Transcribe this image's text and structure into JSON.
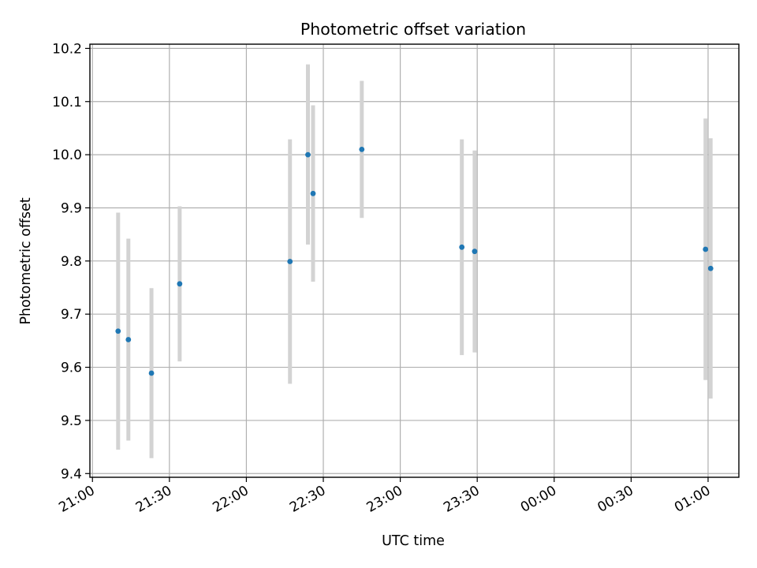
{
  "chart_data": {
    "type": "scatter",
    "title": "Photometric offset variation",
    "xlabel": "UTC time",
    "ylabel": "Photometric offset",
    "x_ticks": [
      "21:00",
      "21:30",
      "22:00",
      "22:30",
      "23:00",
      "23:30",
      "00:00",
      "00:30",
      "01:00"
    ],
    "y_ticks": [
      "9.4",
      "9.5",
      "9.6",
      "9.7",
      "9.8",
      "9.9",
      "10.0",
      "10.1",
      "10.2"
    ],
    "xlim": [
      "20:59",
      "01:12"
    ],
    "ylim": [
      9.393,
      10.208
    ],
    "grid": true,
    "marker_color": "#1f77b4",
    "errorbar_color": "#d3d3d3",
    "points": [
      {
        "time": "21:10",
        "y": 9.668,
        "low": 9.445,
        "high": 9.891
      },
      {
        "time": "21:14",
        "y": 9.652,
        "low": 9.462,
        "high": 9.842
      },
      {
        "time": "21:23",
        "y": 9.589,
        "low": 9.429,
        "high": 9.749
      },
      {
        "time": "21:34",
        "y": 9.757,
        "low": 9.611,
        "high": 9.903
      },
      {
        "time": "22:17",
        "y": 9.799,
        "low": 9.569,
        "high": 10.029
      },
      {
        "time": "22:24",
        "y": 10.0,
        "low": 9.831,
        "high": 10.17
      },
      {
        "time": "22:26",
        "y": 9.927,
        "low": 9.761,
        "high": 10.093
      },
      {
        "time": "22:45",
        "y": 10.01,
        "low": 9.881,
        "high": 10.139
      },
      {
        "time": "23:24",
        "y": 9.826,
        "low": 9.623,
        "high": 10.029
      },
      {
        "time": "23:29",
        "y": 9.818,
        "low": 9.628,
        "high": 10.008
      },
      {
        "time": "00:59",
        "y": 9.822,
        "low": 9.576,
        "high": 10.068
      },
      {
        "time": "01:01",
        "y": 9.786,
        "low": 9.541,
        "high": 10.031
      }
    ]
  }
}
